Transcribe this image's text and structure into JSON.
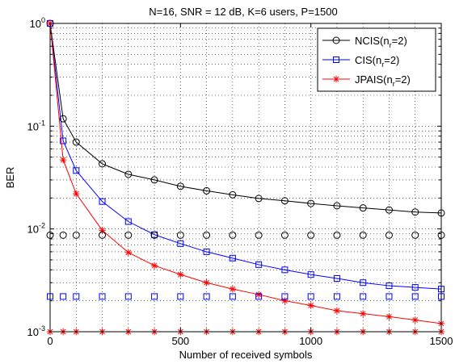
{
  "chart_data": {
    "type": "line",
    "title": "N=16, SNR = 12 dB, K=6 users, P=1500",
    "xlabel": "Number of received symbols",
    "ylabel": "BER",
    "xlim": [
      0,
      1500
    ],
    "ylim": [
      0.001,
      1
    ],
    "yscale": "log",
    "grid": true,
    "legend_position": "top-right",
    "x_ticks": [
      0,
      500,
      1000,
      1500
    ],
    "x_tick_labels": [
      "0",
      "500",
      "1000",
      "1500"
    ],
    "y_ticks": [
      1,
      0.1,
      0.01,
      0.001
    ],
    "y_tick_labels": [
      {
        "base": "10",
        "exp": "0"
      },
      {
        "base": "10",
        "exp": "-1"
      },
      {
        "base": "10",
        "exp": "-2"
      },
      {
        "base": "10",
        "exp": "-3"
      }
    ],
    "series": [
      {
        "name": "NCIS(n_r=2)",
        "label_main": "NCIS(n",
        "label_sub": "r",
        "label_tail": "=2)",
        "color": "#000000",
        "marker": "circle",
        "x": [
          0,
          50,
          100,
          200,
          300,
          400,
          500,
          600,
          700,
          800,
          900,
          1000,
          1100,
          1200,
          1300,
          1400,
          1500
        ],
        "y": [
          1.0,
          0.118,
          0.07,
          0.043,
          0.034,
          0.03,
          0.026,
          0.0235,
          0.0215,
          0.0198,
          0.0188,
          0.0177,
          0.0168,
          0.016,
          0.0153,
          0.0146,
          0.0143
        ]
      },
      {
        "name": "CIS(n_r=2)",
        "label_main": "CIS(n",
        "label_sub": "r",
        "label_tail": "=2)",
        "color": "#0000ff",
        "marker": "square",
        "x": [
          0,
          50,
          100,
          200,
          300,
          400,
          500,
          600,
          700,
          800,
          900,
          1000,
          1100,
          1200,
          1300,
          1400,
          1500
        ],
        "y": [
          1.0,
          0.072,
          0.037,
          0.0185,
          0.0118,
          0.0088,
          0.0072,
          0.006,
          0.0052,
          0.0045,
          0.004,
          0.0036,
          0.0033,
          0.003,
          0.0028,
          0.0027,
          0.0026
        ]
      },
      {
        "name": "JPAIS(n_r=2)",
        "label_main": "JPAIS(n",
        "label_sub": "r",
        "label_tail": "=2)",
        "color": "#ff0000",
        "marker": "star",
        "x": [
          0,
          50,
          100,
          200,
          300,
          400,
          500,
          600,
          700,
          800,
          900,
          1000,
          1100,
          1200,
          1300,
          1400,
          1500
        ],
        "y": [
          1.0,
          0.047,
          0.022,
          0.0097,
          0.0059,
          0.0044,
          0.0036,
          0.003,
          0.0026,
          0.0023,
          0.002,
          0.0018,
          0.0016,
          0.0015,
          0.0014,
          0.0013,
          0.0012
        ]
      },
      {
        "name": "NCIS bound",
        "show_in_legend": false,
        "color": "#000000",
        "marker": "circle",
        "line": false,
        "x": [
          0,
          50,
          100,
          200,
          300,
          400,
          500,
          600,
          700,
          800,
          900,
          1000,
          1100,
          1200,
          1300,
          1400,
          1500
        ],
        "y": [
          0.0087,
          0.0087,
          0.0087,
          0.0087,
          0.0087,
          0.0087,
          0.0087,
          0.0087,
          0.0087,
          0.0087,
          0.0087,
          0.0087,
          0.0087,
          0.0087,
          0.0087,
          0.0087,
          0.0087
        ]
      },
      {
        "name": "CIS bound",
        "show_in_legend": false,
        "color": "#0000ff",
        "marker": "square",
        "line": false,
        "x": [
          0,
          50,
          100,
          200,
          300,
          400,
          500,
          600,
          700,
          800,
          900,
          1000,
          1100,
          1200,
          1300,
          1400,
          1500
        ],
        "y": [
          0.0022,
          0.0022,
          0.0022,
          0.0022,
          0.0022,
          0.0022,
          0.0022,
          0.0022,
          0.0022,
          0.0022,
          0.0022,
          0.0022,
          0.0022,
          0.0022,
          0.0022,
          0.0022,
          0.0022
        ]
      },
      {
        "name": "JPAIS bound",
        "show_in_legend": false,
        "color": "#ff0000",
        "marker": "star",
        "line": false,
        "x": [
          0,
          50,
          100,
          200,
          300,
          400,
          500,
          600,
          700,
          800,
          900,
          1000,
          1100,
          1200,
          1300,
          1400,
          1500
        ],
        "y": [
          0.001,
          0.001,
          0.001,
          0.001,
          0.001,
          0.001,
          0.001,
          0.001,
          0.001,
          0.001,
          0.001,
          0.001,
          0.001,
          0.001,
          0.001,
          0.001,
          0.001
        ]
      }
    ]
  }
}
